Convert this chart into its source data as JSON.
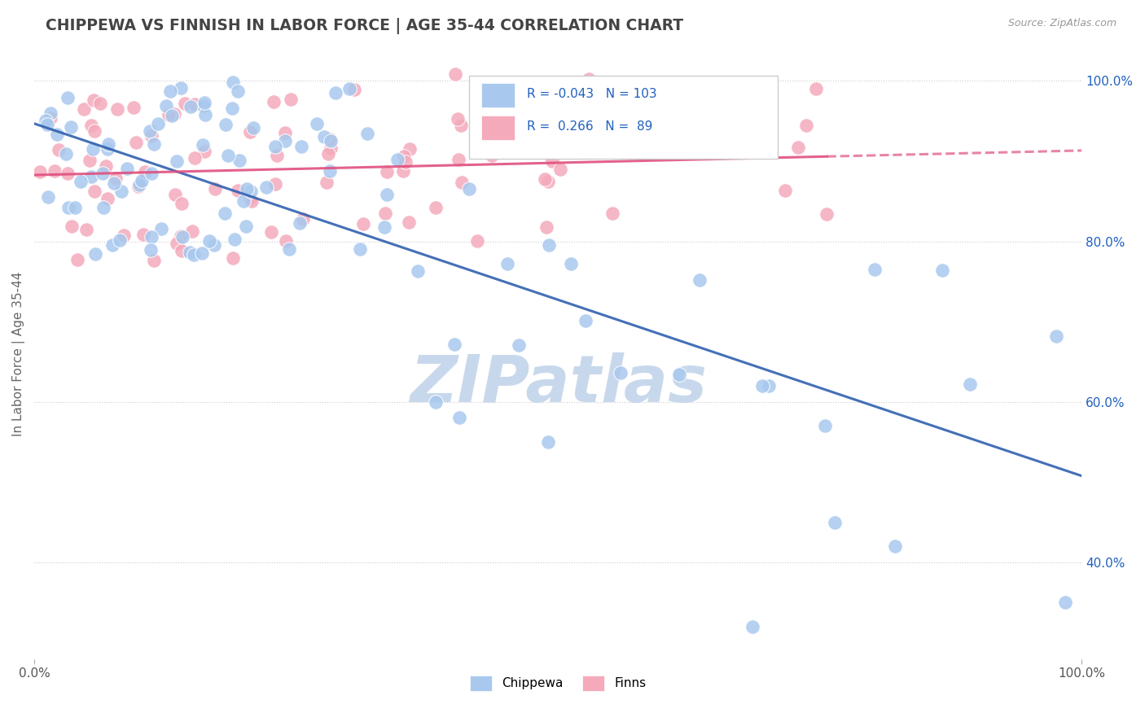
{
  "title": "CHIPPEWA VS FINNISH IN LABOR FORCE | AGE 35-44 CORRELATION CHART",
  "source": "Source: ZipAtlas.com",
  "ylabel": "In Labor Force | Age 35-44",
  "r_chippewa": -0.043,
  "n_chippewa": 103,
  "r_finns": 0.266,
  "n_finns": 89,
  "chippewa_color": "#A8C8EE",
  "finns_color": "#F4AABB",
  "chippewa_line_color": "#3060B0",
  "finns_line_color": "#E05080",
  "watermark_color": "#C8D8EC",
  "background_color": "#FFFFFF",
  "title_color": "#444444",
  "source_color": "#999999",
  "axis_color": "#2060C0",
  "legend_text_color": "#2060C0",
  "ylim_low": 0.28,
  "ylim_high": 1.04,
  "y_ticks": [
    0.4,
    0.6,
    0.8,
    1.0
  ],
  "y_tick_labels": [
    "40.0%",
    "60.0%",
    "80.0%",
    "100.0%"
  ]
}
